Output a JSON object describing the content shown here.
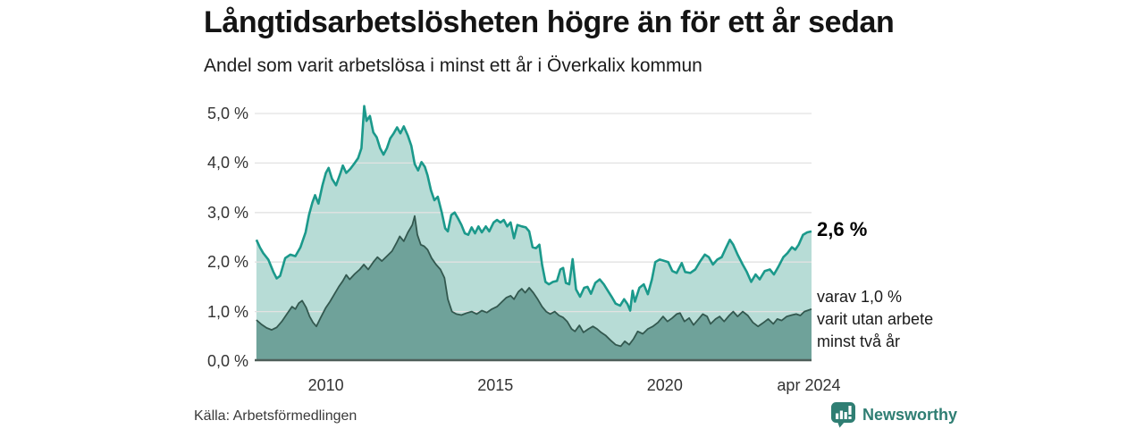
{
  "header": {
    "title": "Långtidsarbetslösheten högre än för ett år sedan",
    "subtitle": "Andel som varit arbetslösa i minst ett år i Överkalix kommun"
  },
  "annotations": {
    "latest_total": "2,6 %",
    "varav_lines": [
      "varav 1,0 %",
      "varit utan arbete",
      "minst två år"
    ]
  },
  "footer": {
    "source": "Källa: Arbetsförmedlingen",
    "brand": "Newsworthy",
    "brand_color": "#2f7e73"
  },
  "chart_data": {
    "type": "area",
    "title": "Långtidsarbetslösheten högre än för ett år sedan",
    "subtitle": "Andel som varit arbetslösa i minst ett år i Överkalix kommun",
    "xlabel": "",
    "ylabel": "",
    "ylim": [
      0,
      5.4
    ],
    "xlim": [
      2007.9,
      2024.33
    ],
    "grid": true,
    "legend_position": "annotated-right",
    "style": {
      "grid_color": "#e2e2e2",
      "axis_color": "#4e5e59",
      "tick_color": "#333333",
      "background": "#ffffff"
    },
    "yticks": [
      {
        "label": "0,0 %",
        "value": 0
      },
      {
        "label": "1,0 %",
        "value": 1
      },
      {
        "label": "2,0 %",
        "value": 2
      },
      {
        "label": "3,0 %",
        "value": 3
      },
      {
        "label": "4,0 %",
        "value": 4
      },
      {
        "label": "5,0 %",
        "value": 5
      }
    ],
    "xticks": [
      {
        "label": "2010",
        "year": 2010
      },
      {
        "label": "2015",
        "year": 2015
      },
      {
        "label": "2020",
        "year": 2020
      },
      {
        "label": "apr 2024",
        "year": 2024.25
      }
    ],
    "series": [
      {
        "name": "Andel arbetslösa minst ett år",
        "latest_label": "2,6 %",
        "color": "#1b998b",
        "fill": "#b7dcd6",
        "line_width": 2.6,
        "points": [
          [
            2007.95,
            2.45
          ],
          [
            2008.05,
            2.3
          ],
          [
            2008.15,
            2.18
          ],
          [
            2008.3,
            2.05
          ],
          [
            2008.45,
            1.8
          ],
          [
            2008.55,
            1.67
          ],
          [
            2008.65,
            1.72
          ],
          [
            2008.8,
            2.08
          ],
          [
            2008.95,
            2.15
          ],
          [
            2009.1,
            2.12
          ],
          [
            2009.25,
            2.3
          ],
          [
            2009.4,
            2.6
          ],
          [
            2009.5,
            2.95
          ],
          [
            2009.6,
            3.2
          ],
          [
            2009.68,
            3.35
          ],
          [
            2009.78,
            3.18
          ],
          [
            2009.9,
            3.55
          ],
          [
            2010.0,
            3.8
          ],
          [
            2010.08,
            3.9
          ],
          [
            2010.18,
            3.68
          ],
          [
            2010.3,
            3.55
          ],
          [
            2010.42,
            3.78
          ],
          [
            2010.5,
            3.95
          ],
          [
            2010.6,
            3.8
          ],
          [
            2010.72,
            3.88
          ],
          [
            2010.85,
            4.0
          ],
          [
            2010.95,
            4.1
          ],
          [
            2011.05,
            4.3
          ],
          [
            2011.13,
            5.15
          ],
          [
            2011.2,
            4.85
          ],
          [
            2011.3,
            4.95
          ],
          [
            2011.4,
            4.62
          ],
          [
            2011.5,
            4.52
          ],
          [
            2011.6,
            4.3
          ],
          [
            2011.7,
            4.17
          ],
          [
            2011.8,
            4.3
          ],
          [
            2011.9,
            4.5
          ],
          [
            2012.0,
            4.6
          ],
          [
            2012.1,
            4.72
          ],
          [
            2012.2,
            4.6
          ],
          [
            2012.3,
            4.74
          ],
          [
            2012.42,
            4.55
          ],
          [
            2012.52,
            4.35
          ],
          [
            2012.62,
            3.98
          ],
          [
            2012.72,
            3.85
          ],
          [
            2012.82,
            4.02
          ],
          [
            2012.92,
            3.92
          ],
          [
            2013.0,
            3.75
          ],
          [
            2013.1,
            3.45
          ],
          [
            2013.2,
            3.25
          ],
          [
            2013.3,
            3.32
          ],
          [
            2013.42,
            3.0
          ],
          [
            2013.52,
            2.68
          ],
          [
            2013.6,
            2.62
          ],
          [
            2013.7,
            2.95
          ],
          [
            2013.8,
            3.0
          ],
          [
            2013.9,
            2.88
          ],
          [
            2014.0,
            2.75
          ],
          [
            2014.1,
            2.58
          ],
          [
            2014.2,
            2.55
          ],
          [
            2014.3,
            2.7
          ],
          [
            2014.4,
            2.58
          ],
          [
            2014.5,
            2.72
          ],
          [
            2014.6,
            2.6
          ],
          [
            2014.72,
            2.72
          ],
          [
            2014.82,
            2.62
          ],
          [
            2014.95,
            2.8
          ],
          [
            2015.05,
            2.85
          ],
          [
            2015.15,
            2.8
          ],
          [
            2015.25,
            2.85
          ],
          [
            2015.35,
            2.72
          ],
          [
            2015.45,
            2.8
          ],
          [
            2015.55,
            2.48
          ],
          [
            2015.65,
            2.75
          ],
          [
            2015.78,
            2.72
          ],
          [
            2015.9,
            2.7
          ],
          [
            2016.0,
            2.62
          ],
          [
            2016.1,
            2.3
          ],
          [
            2016.2,
            2.28
          ],
          [
            2016.3,
            2.35
          ],
          [
            2016.38,
            1.95
          ],
          [
            2016.48,
            1.6
          ],
          [
            2016.58,
            1.55
          ],
          [
            2016.7,
            1.6
          ],
          [
            2016.82,
            1.62
          ],
          [
            2016.92,
            1.85
          ],
          [
            2017.0,
            1.88
          ],
          [
            2017.08,
            1.58
          ],
          [
            2017.18,
            1.55
          ],
          [
            2017.28,
            2.06
          ],
          [
            2017.38,
            1.45
          ],
          [
            2017.5,
            1.3
          ],
          [
            2017.62,
            1.48
          ],
          [
            2017.72,
            1.5
          ],
          [
            2017.82,
            1.36
          ],
          [
            2017.95,
            1.58
          ],
          [
            2018.08,
            1.65
          ],
          [
            2018.2,
            1.55
          ],
          [
            2018.32,
            1.42
          ],
          [
            2018.45,
            1.28
          ],
          [
            2018.55,
            1.16
          ],
          [
            2018.68,
            1.12
          ],
          [
            2018.8,
            1.25
          ],
          [
            2018.9,
            1.15
          ],
          [
            2018.98,
            1.02
          ],
          [
            2019.05,
            1.42
          ],
          [
            2019.12,
            1.2
          ],
          [
            2019.25,
            1.48
          ],
          [
            2019.38,
            1.55
          ],
          [
            2019.5,
            1.35
          ],
          [
            2019.62,
            1.65
          ],
          [
            2019.72,
            2.0
          ],
          [
            2019.85,
            2.05
          ],
          [
            2019.95,
            2.03
          ],
          [
            2020.1,
            2.0
          ],
          [
            2020.22,
            1.82
          ],
          [
            2020.35,
            1.78
          ],
          [
            2020.5,
            1.98
          ],
          [
            2020.6,
            1.8
          ],
          [
            2020.75,
            1.78
          ],
          [
            2020.9,
            1.85
          ],
          [
            2021.05,
            2.02
          ],
          [
            2021.18,
            2.15
          ],
          [
            2021.3,
            2.1
          ],
          [
            2021.42,
            1.95
          ],
          [
            2021.55,
            2.05
          ],
          [
            2021.68,
            2.1
          ],
          [
            2021.8,
            2.28
          ],
          [
            2021.92,
            2.45
          ],
          [
            2022.02,
            2.35
          ],
          [
            2022.15,
            2.15
          ],
          [
            2022.3,
            1.95
          ],
          [
            2022.42,
            1.8
          ],
          [
            2022.55,
            1.6
          ],
          [
            2022.68,
            1.75
          ],
          [
            2022.8,
            1.65
          ],
          [
            2022.95,
            1.82
          ],
          [
            2023.1,
            1.85
          ],
          [
            2023.22,
            1.75
          ],
          [
            2023.35,
            1.9
          ],
          [
            2023.5,
            2.1
          ],
          [
            2023.62,
            2.18
          ],
          [
            2023.75,
            2.3
          ],
          [
            2023.85,
            2.25
          ],
          [
            2023.95,
            2.35
          ],
          [
            2024.08,
            2.55
          ],
          [
            2024.2,
            2.6
          ],
          [
            2024.33,
            2.62
          ]
        ]
      },
      {
        "name": "varav utan arbete minst två år",
        "latest_label": "1,0 %",
        "color": "#33584f",
        "fill": "#6fa29a",
        "line_width": 1.8,
        "points": [
          [
            2007.95,
            0.83
          ],
          [
            2008.1,
            0.74
          ],
          [
            2008.25,
            0.67
          ],
          [
            2008.4,
            0.63
          ],
          [
            2008.55,
            0.68
          ],
          [
            2008.7,
            0.8
          ],
          [
            2008.85,
            0.95
          ],
          [
            2009.0,
            1.1
          ],
          [
            2009.1,
            1.05
          ],
          [
            2009.2,
            1.17
          ],
          [
            2009.3,
            1.22
          ],
          [
            2009.42,
            1.08
          ],
          [
            2009.52,
            0.9
          ],
          [
            2009.62,
            0.78
          ],
          [
            2009.72,
            0.7
          ],
          [
            2009.85,
            0.88
          ],
          [
            2010.0,
            1.08
          ],
          [
            2010.12,
            1.2
          ],
          [
            2010.25,
            1.35
          ],
          [
            2010.38,
            1.5
          ],
          [
            2010.5,
            1.62
          ],
          [
            2010.6,
            1.74
          ],
          [
            2010.7,
            1.65
          ],
          [
            2010.85,
            1.76
          ],
          [
            2011.0,
            1.85
          ],
          [
            2011.12,
            1.95
          ],
          [
            2011.25,
            1.85
          ],
          [
            2011.4,
            2.0
          ],
          [
            2011.52,
            2.1
          ],
          [
            2011.65,
            2.02
          ],
          [
            2011.8,
            2.12
          ],
          [
            2011.95,
            2.22
          ],
          [
            2012.08,
            2.38
          ],
          [
            2012.18,
            2.52
          ],
          [
            2012.3,
            2.42
          ],
          [
            2012.42,
            2.6
          ],
          [
            2012.55,
            2.75
          ],
          [
            2012.62,
            2.93
          ],
          [
            2012.7,
            2.55
          ],
          [
            2012.8,
            2.35
          ],
          [
            2012.9,
            2.32
          ],
          [
            2013.0,
            2.25
          ],
          [
            2013.12,
            2.08
          ],
          [
            2013.25,
            1.95
          ],
          [
            2013.38,
            1.85
          ],
          [
            2013.5,
            1.68
          ],
          [
            2013.6,
            1.25
          ],
          [
            2013.72,
            1.0
          ],
          [
            2013.85,
            0.95
          ],
          [
            2014.0,
            0.93
          ],
          [
            2014.15,
            0.97
          ],
          [
            2014.3,
            1.0
          ],
          [
            2014.45,
            0.95
          ],
          [
            2014.6,
            1.02
          ],
          [
            2014.75,
            0.98
          ],
          [
            2014.9,
            1.05
          ],
          [
            2015.05,
            1.1
          ],
          [
            2015.2,
            1.2
          ],
          [
            2015.32,
            1.28
          ],
          [
            2015.45,
            1.32
          ],
          [
            2015.55,
            1.25
          ],
          [
            2015.68,
            1.4
          ],
          [
            2015.78,
            1.46
          ],
          [
            2015.88,
            1.38
          ],
          [
            2016.0,
            1.48
          ],
          [
            2016.12,
            1.38
          ],
          [
            2016.25,
            1.25
          ],
          [
            2016.38,
            1.1
          ],
          [
            2016.5,
            1.0
          ],
          [
            2016.62,
            0.95
          ],
          [
            2016.75,
            1.0
          ],
          [
            2016.88,
            0.92
          ],
          [
            2017.0,
            0.88
          ],
          [
            2017.12,
            0.8
          ],
          [
            2017.25,
            0.65
          ],
          [
            2017.35,
            0.6
          ],
          [
            2017.48,
            0.72
          ],
          [
            2017.6,
            0.58
          ],
          [
            2017.75,
            0.65
          ],
          [
            2017.88,
            0.7
          ],
          [
            2018.0,
            0.65
          ],
          [
            2018.12,
            0.58
          ],
          [
            2018.25,
            0.52
          ],
          [
            2018.4,
            0.42
          ],
          [
            2018.55,
            0.33
          ],
          [
            2018.7,
            0.3
          ],
          [
            2018.82,
            0.4
          ],
          [
            2018.95,
            0.33
          ],
          [
            2019.08,
            0.45
          ],
          [
            2019.2,
            0.6
          ],
          [
            2019.35,
            0.55
          ],
          [
            2019.5,
            0.65
          ],
          [
            2019.65,
            0.7
          ],
          [
            2019.8,
            0.78
          ],
          [
            2019.95,
            0.9
          ],
          [
            2020.08,
            0.8
          ],
          [
            2020.22,
            0.87
          ],
          [
            2020.35,
            0.95
          ],
          [
            2020.45,
            0.97
          ],
          [
            2020.58,
            0.8
          ],
          [
            2020.72,
            0.87
          ],
          [
            2020.85,
            0.73
          ],
          [
            2021.0,
            0.85
          ],
          [
            2021.12,
            0.95
          ],
          [
            2021.25,
            0.9
          ],
          [
            2021.35,
            0.75
          ],
          [
            2021.5,
            0.85
          ],
          [
            2021.62,
            0.9
          ],
          [
            2021.75,
            0.8
          ],
          [
            2021.9,
            0.92
          ],
          [
            2022.02,
            1.0
          ],
          [
            2022.15,
            0.9
          ],
          [
            2022.3,
            1.0
          ],
          [
            2022.45,
            0.92
          ],
          [
            2022.6,
            0.78
          ],
          [
            2022.75,
            0.7
          ],
          [
            2022.9,
            0.77
          ],
          [
            2023.05,
            0.85
          ],
          [
            2023.2,
            0.75
          ],
          [
            2023.32,
            0.85
          ],
          [
            2023.45,
            0.82
          ],
          [
            2023.6,
            0.9
          ],
          [
            2023.75,
            0.93
          ],
          [
            2023.88,
            0.95
          ],
          [
            2024.0,
            0.92
          ],
          [
            2024.12,
            1.0
          ],
          [
            2024.33,
            1.05
          ]
        ]
      }
    ]
  }
}
